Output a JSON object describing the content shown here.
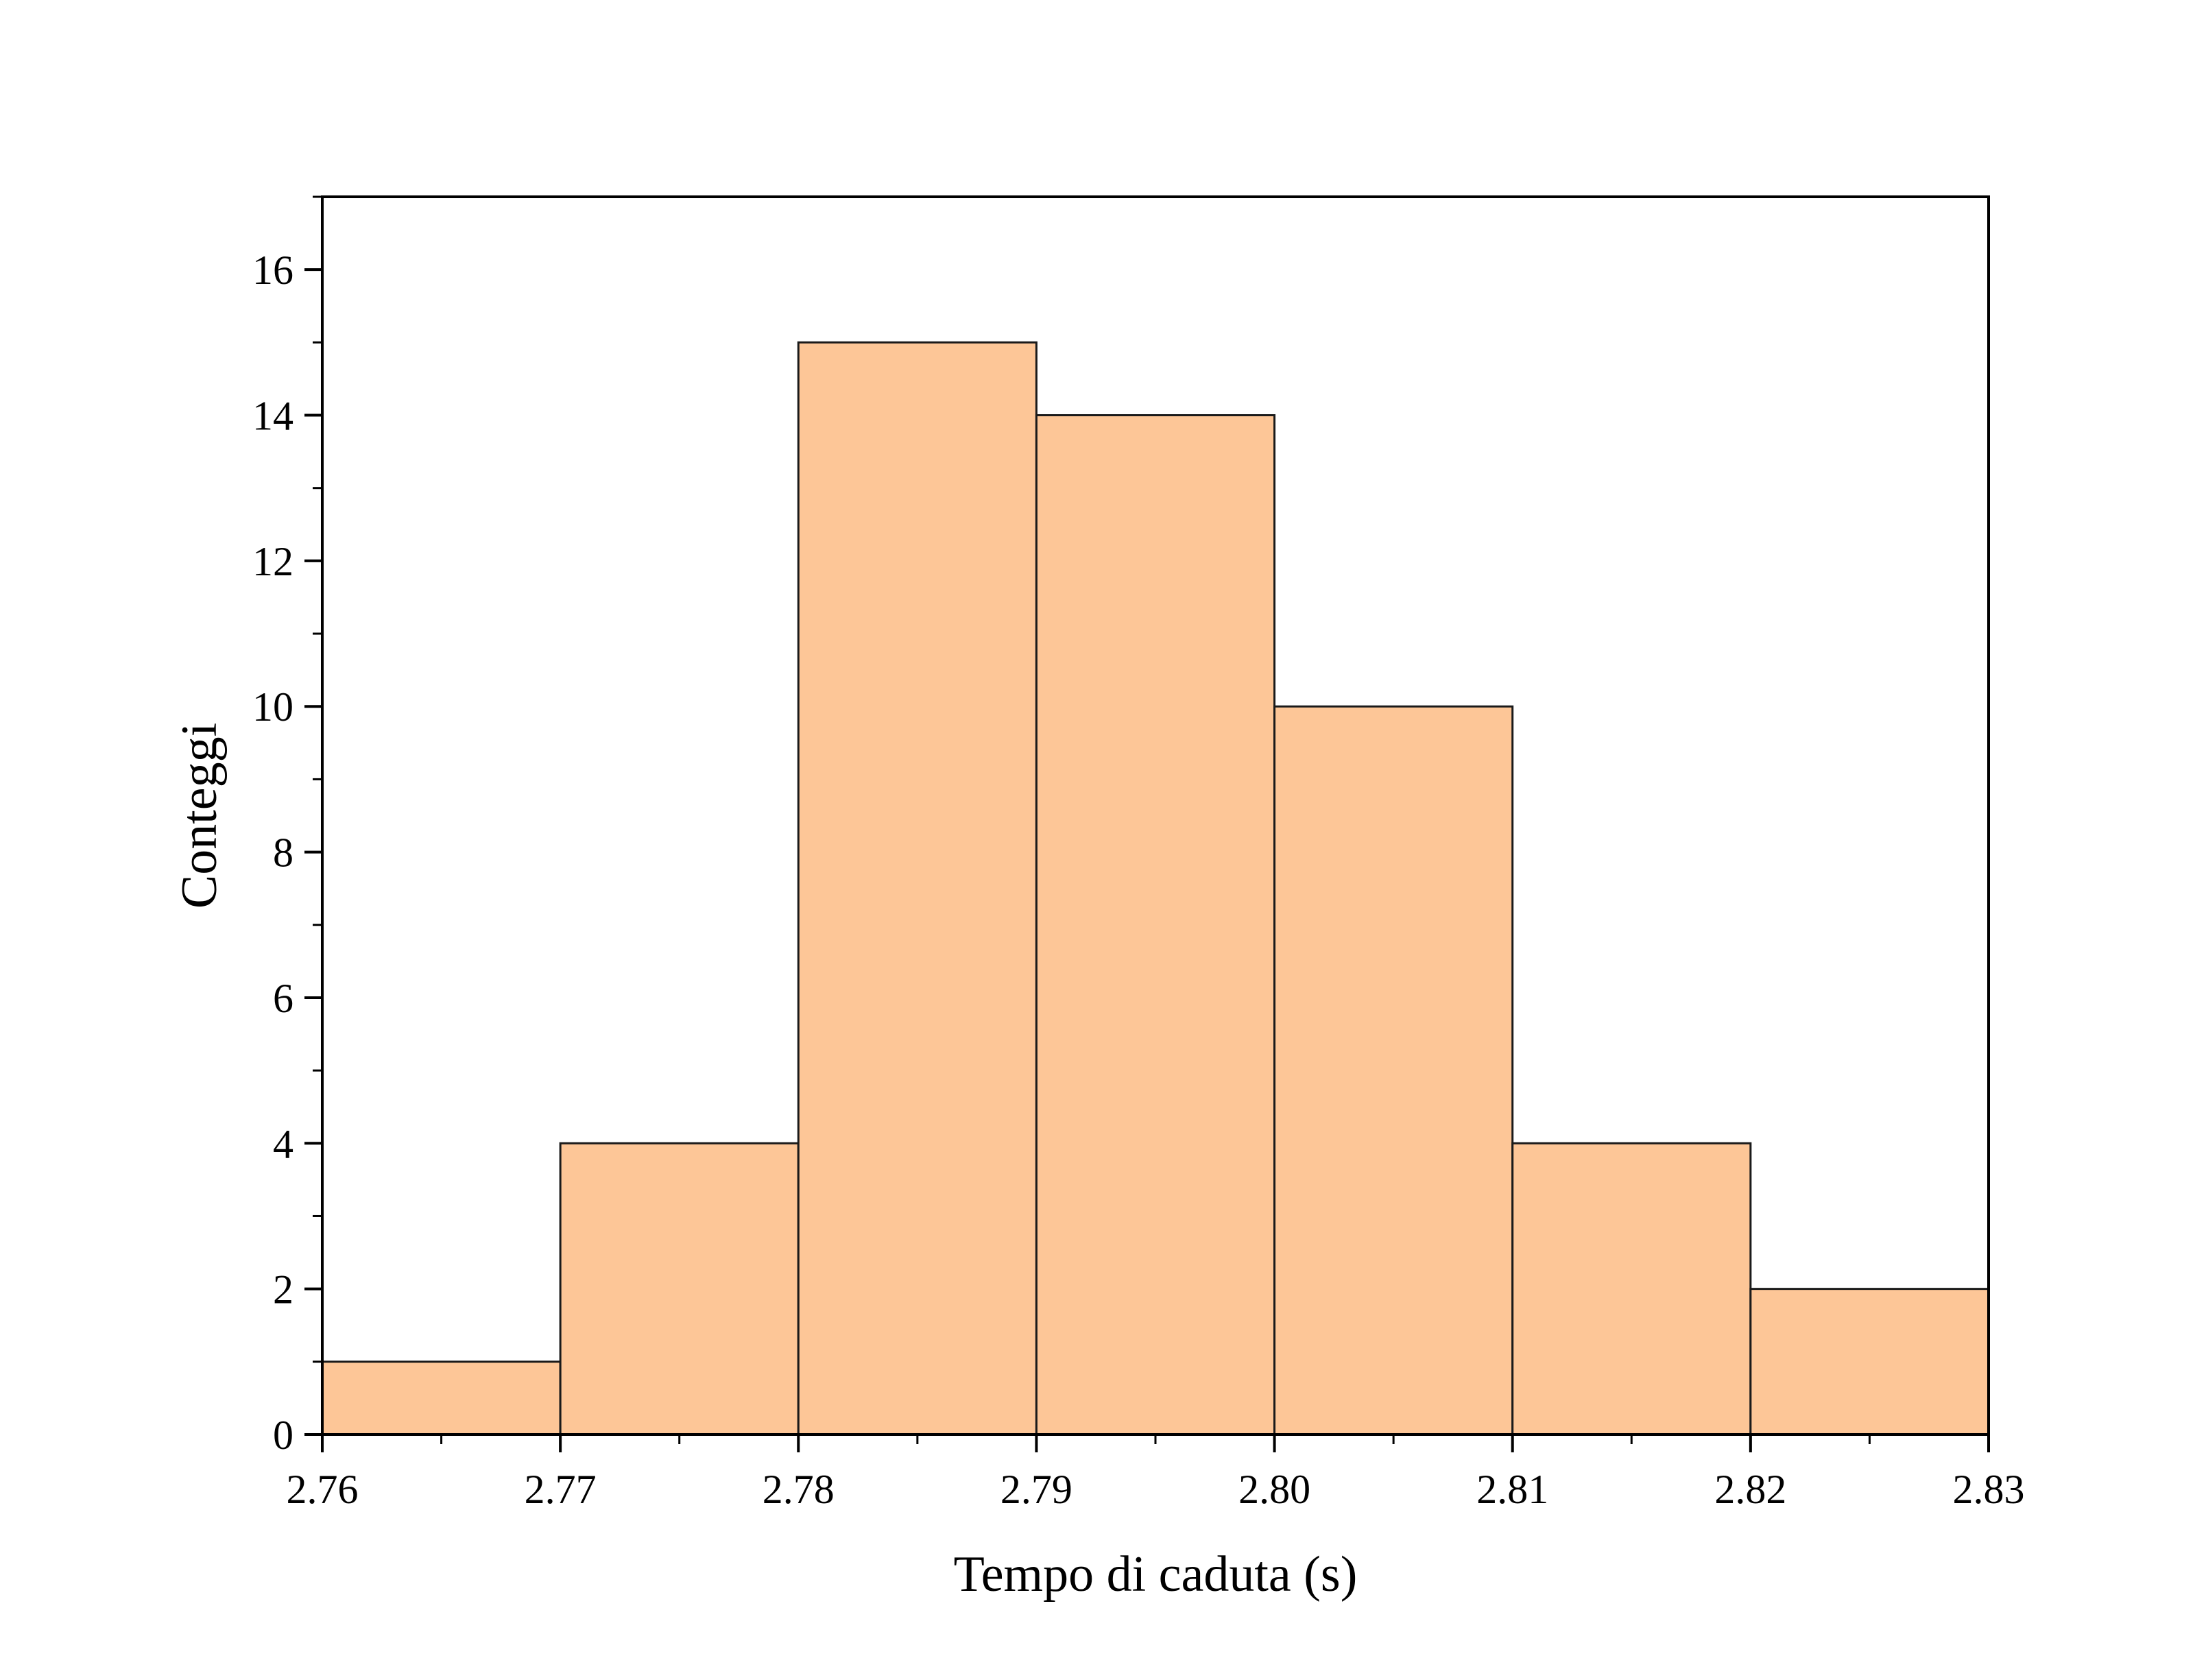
{
  "chart_data": {
    "type": "bar",
    "subtype": "histogram",
    "bin_edges": [
      2.76,
      2.77,
      2.78,
      2.79,
      2.8,
      2.81,
      2.82,
      2.83
    ],
    "values": [
      1,
      4,
      15,
      14,
      10,
      4,
      2
    ],
    "xlabel": "Tempo di caduta (s)",
    "ylabel": "Conteggi",
    "xlim": [
      2.76,
      2.83
    ],
    "ylim": [
      0,
      17
    ],
    "xticks": [
      2.76,
      2.77,
      2.78,
      2.79,
      2.8,
      2.81,
      2.82,
      2.83
    ],
    "xtick_labels": [
      "2.76",
      "2.77",
      "2.78",
      "2.79",
      "2.80",
      "2.81",
      "2.82",
      "2.83"
    ],
    "yticks": [
      0,
      2,
      4,
      6,
      8,
      10,
      12,
      14,
      16
    ],
    "ytick_labels": [
      "0",
      "2",
      "4",
      "6",
      "8",
      "10",
      "12",
      "14",
      "16"
    ],
    "grid": false,
    "legend": "none",
    "colors": {
      "bar_fill": "#FDC697",
      "bar_edge": "#1a1a1a",
      "axis": "#000000"
    }
  }
}
